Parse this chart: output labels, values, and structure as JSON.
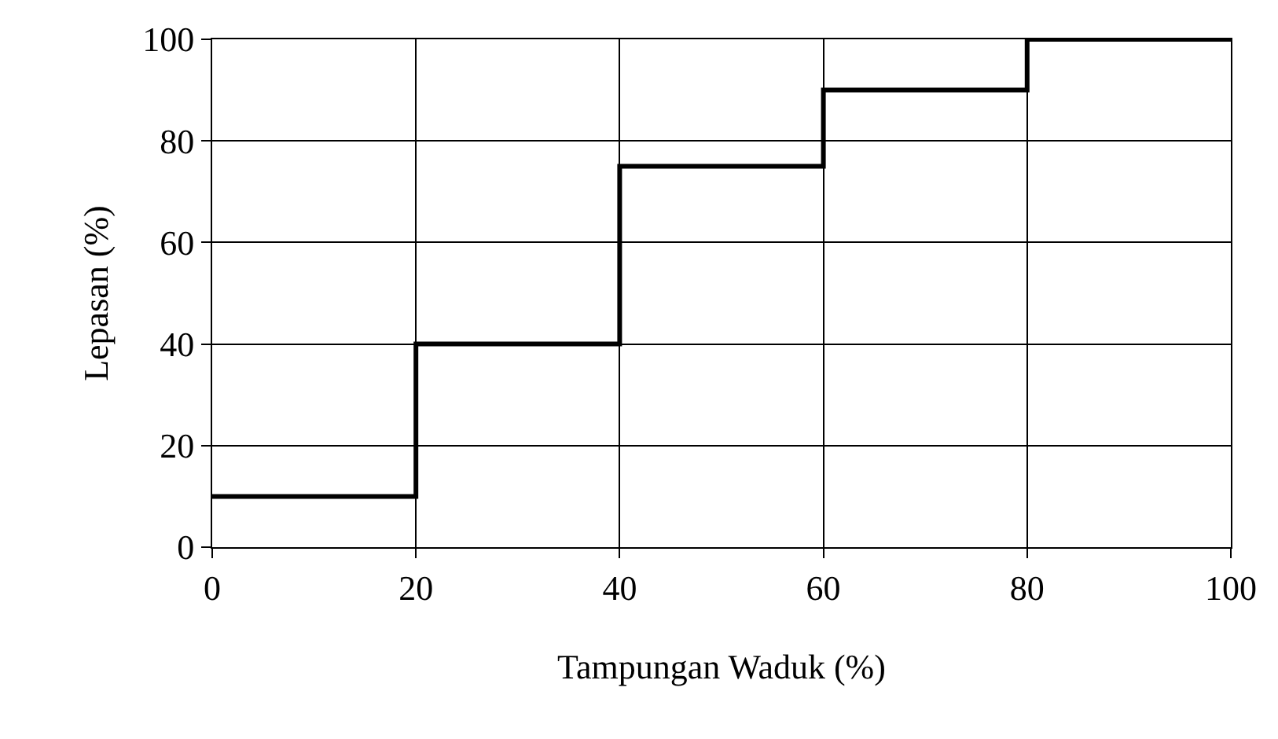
{
  "chart_data": {
    "type": "step",
    "xlabel": "Tampungan Waduk (%)",
    "ylabel": "Lepasan (%)",
    "x": [
      0,
      20,
      40,
      60,
      80,
      100
    ],
    "series": [
      {
        "color": "#000000",
        "values": [
          10,
          40,
          75,
          90,
          100,
          100
        ]
      }
    ],
    "xlim": [
      0,
      100
    ],
    "xticks": [
      0,
      20,
      40,
      60,
      80,
      100
    ],
    "ylim": [
      0,
      100
    ],
    "yticks": [
      0,
      20,
      40,
      60,
      80,
      100
    ],
    "grid": true,
    "legend": false,
    "marker": "none",
    "line_style": "solid"
  }
}
